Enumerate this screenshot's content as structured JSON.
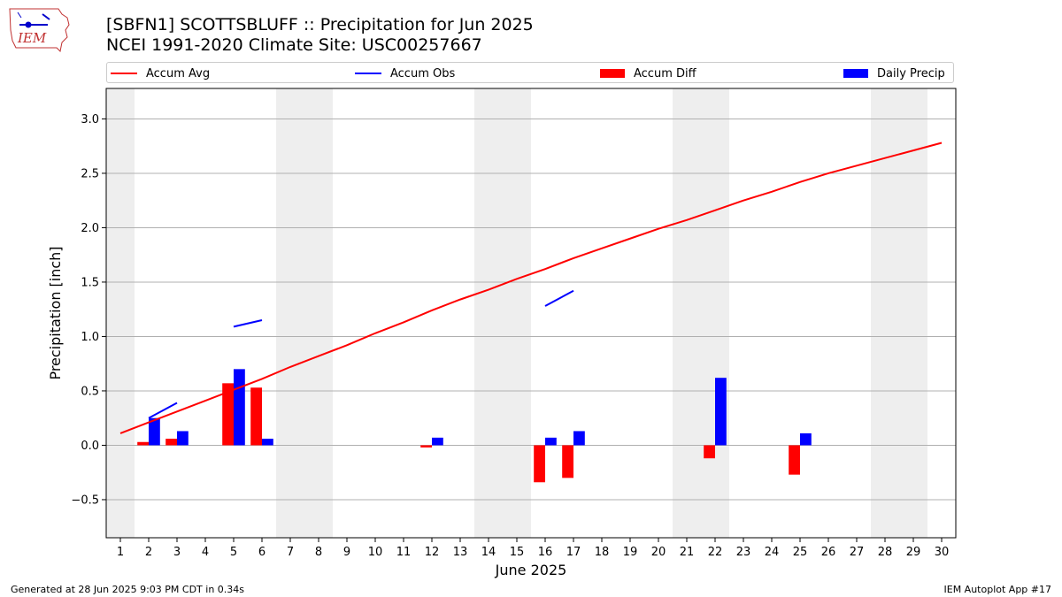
{
  "header": {
    "title_line1": "[SBFN1] SCOTTSBLUFF :: Precipitation for Jun 2025",
    "title_line2": "NCEI 1991-2020 Climate Site: USC00257667"
  },
  "logo": {
    "text": "IEM"
  },
  "legend": {
    "accum_avg": "Accum Avg",
    "accum_obs": "Accum Obs",
    "accum_diff": "Accum Diff",
    "daily_precip": "Daily Precip"
  },
  "colors": {
    "accum_avg": "#ff0000",
    "accum_obs": "#0000ff",
    "accum_diff": "#ff0000",
    "daily_precip": "#0000ff",
    "weekend_shade": "#eeeeee",
    "grid": "#b0b0b0"
  },
  "footer": {
    "generated": "Generated at 28 Jun 2025 9:03 PM CDT in 0.34s",
    "app": "IEM Autoplot App #17"
  },
  "chart_data": {
    "type": "bar",
    "xlabel": "June 2025",
    "ylabel": "Precipitation [inch]",
    "xlim": [
      0.5,
      30.5
    ],
    "ylim": [
      -0.85,
      3.28
    ],
    "yticks": [
      -0.5,
      0.0,
      0.5,
      1.0,
      1.5,
      2.0,
      2.5,
      3.0
    ],
    "ytick_labels": [
      "−0.5",
      "0.0",
      "0.5",
      "1.0",
      "1.5",
      "2.0",
      "2.5",
      "3.0"
    ],
    "grid": "horizontal",
    "legend_position": "top",
    "days": [
      1,
      2,
      3,
      4,
      5,
      6,
      7,
      8,
      9,
      10,
      11,
      12,
      13,
      14,
      15,
      16,
      17,
      18,
      19,
      20,
      21,
      22,
      23,
      24,
      25,
      26,
      27,
      28,
      29,
      30
    ],
    "weekend_shading": [
      [
        0.5,
        1.5
      ],
      [
        6.5,
        8.5
      ],
      [
        13.5,
        15.5
      ],
      [
        20.5,
        22.5
      ],
      [
        27.5,
        29.5
      ]
    ],
    "series": [
      {
        "name": "Accum Avg",
        "kind": "line",
        "values": [
          0.11,
          0.21,
          0.31,
          0.41,
          0.51,
          0.61,
          0.72,
          0.82,
          0.92,
          1.03,
          1.13,
          1.24,
          1.34,
          1.43,
          1.53,
          1.62,
          1.72,
          1.81,
          1.9,
          1.99,
          2.07,
          2.16,
          2.25,
          2.33,
          2.42,
          2.5,
          2.57,
          2.64,
          2.71,
          2.78
        ]
      },
      {
        "name": "Accum Obs",
        "kind": "line_segments",
        "segments": [
          [
            [
              2,
              0.25
            ],
            [
              3,
              0.39
            ]
          ],
          [
            [
              5,
              1.09
            ],
            [
              6,
              1.15
            ]
          ],
          [
            [
              16,
              1.28
            ],
            [
              17,
              1.42
            ]
          ]
        ]
      },
      {
        "name": "Accum Diff",
        "kind": "bar",
        "values": [
          0,
          0.03,
          0.06,
          0,
          0.57,
          0.53,
          0,
          0,
          0,
          0,
          0,
          -0.02,
          0,
          0,
          0,
          -0.34,
          -0.3,
          0,
          0,
          0,
          0,
          -0.12,
          0,
          0,
          -0.27,
          0,
          0,
          0,
          0,
          0
        ]
      },
      {
        "name": "Daily Precip",
        "kind": "bar",
        "values": [
          0,
          0.25,
          0.13,
          0,
          0.7,
          0.06,
          0,
          0,
          0,
          0,
          0,
          0.07,
          0,
          0,
          0,
          0.07,
          0.13,
          0,
          0,
          0,
          0,
          0.62,
          0,
          0,
          0.11,
          0,
          0,
          0,
          0,
          0
        ]
      }
    ]
  }
}
